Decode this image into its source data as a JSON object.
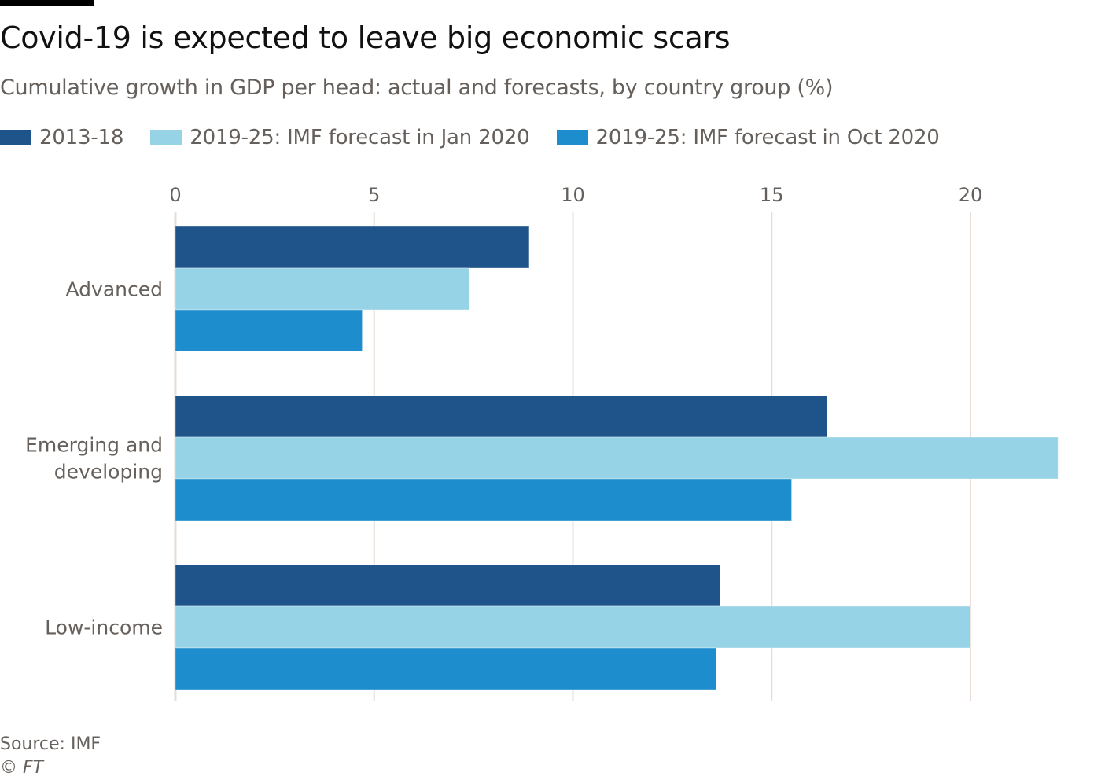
{
  "chart_data": {
    "type": "bar",
    "orientation": "horizontal",
    "title": "Covid-19 is expected to leave big economic scars",
    "subtitle": "Cumulative growth in GDP per head: actual and forecasts, by country group (%)",
    "xlabel": "",
    "ylabel": "",
    "xlim": [
      0,
      22.2
    ],
    "xticks": [
      0,
      5,
      10,
      15,
      20
    ],
    "xtick_labels": [
      "0",
      "5",
      "10",
      "15",
      "20"
    ],
    "tick_position": "top",
    "grid": true,
    "legend_position": "top",
    "categories": [
      {
        "label": "Advanced",
        "lines": [
          "Advanced"
        ]
      },
      {
        "label": "Emerging and developing",
        "lines": [
          "Emerging and",
          "developing"
        ]
      },
      {
        "label": "Low-income",
        "lines": [
          "Low-income"
        ]
      }
    ],
    "series": [
      {
        "name": "2013-18",
        "color": "#1f548a",
        "values": [
          8.9,
          16.4,
          13.7
        ]
      },
      {
        "name": "2019-25: IMF forecast in Jan 2020",
        "color": "#96d3e6",
        "values": [
          7.4,
          22.2,
          20.0
        ]
      },
      {
        "name": "2019-25: IMF forecast in Oct 2020",
        "color": "#1e8dcd",
        "values": [
          4.7,
          15.5,
          13.6
        ]
      }
    ],
    "source": "Source: IMF",
    "copyright_symbol": "©",
    "copyright_brand": "FT"
  },
  "colors": {
    "gridline": "#e7ddd6",
    "text": "#66605c",
    "title": "#111111"
  }
}
